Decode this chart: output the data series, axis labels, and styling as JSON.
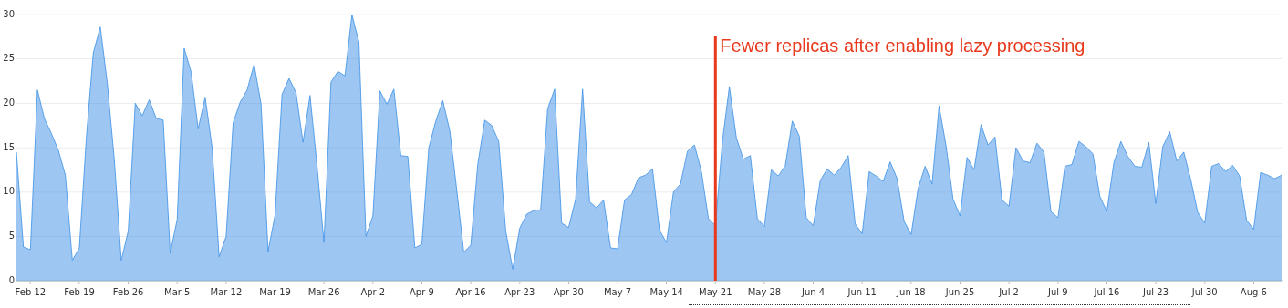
{
  "chart_data": {
    "type": "area",
    "x": [
      "--02-10",
      "--02-11",
      "--02-12",
      "--02-13",
      "--02-14",
      "--02-15",
      "--02-16",
      "--02-17",
      "--02-18",
      "--02-19",
      "--02-20",
      "--02-21",
      "--02-22",
      "--02-23",
      "--02-24",
      "--02-25",
      "--02-26",
      "--02-27",
      "--02-28",
      "--03-01",
      "--03-02",
      "--03-03",
      "--03-04",
      "--03-05",
      "--03-06",
      "--03-07",
      "--03-08",
      "--03-09",
      "--03-10",
      "--03-11",
      "--03-12",
      "--03-13",
      "--03-14",
      "--03-15",
      "--03-16",
      "--03-17",
      "--03-18",
      "--03-19",
      "--03-20",
      "--03-21",
      "--03-22",
      "--03-23",
      "--03-24",
      "--03-25",
      "--03-26",
      "--03-27",
      "--03-28",
      "--03-29",
      "--03-30",
      "--03-31",
      "--04-01",
      "--04-02",
      "--04-03",
      "--04-04",
      "--04-05",
      "--04-06",
      "--04-07",
      "--04-08",
      "--04-09",
      "--04-10",
      "--04-11",
      "--04-12",
      "--04-13",
      "--04-14",
      "--04-15",
      "--04-16",
      "--04-17",
      "--04-18",
      "--04-19",
      "--04-20",
      "--04-21",
      "--04-22",
      "--04-23",
      "--04-24",
      "--04-25",
      "--04-26",
      "--04-27",
      "--04-28",
      "--04-29",
      "--04-30",
      "--05-01",
      "--05-02",
      "--05-03",
      "--05-04",
      "--05-05",
      "--05-06",
      "--05-07",
      "--05-08",
      "--05-09",
      "--05-10",
      "--05-11",
      "--05-12",
      "--05-13",
      "--05-14",
      "--05-15",
      "--05-16",
      "--05-17",
      "--05-18",
      "--05-19",
      "--05-20",
      "--05-21",
      "--05-22",
      "--05-23",
      "--05-24",
      "--05-25",
      "--05-26",
      "--05-27",
      "--05-28",
      "--05-29",
      "--05-30",
      "--05-31",
      "--06-01",
      "--06-02",
      "--06-03",
      "--06-04",
      "--06-05",
      "--06-06",
      "--06-07",
      "--06-08",
      "--06-09",
      "--06-10",
      "--06-11",
      "--06-12",
      "--06-13",
      "--06-14",
      "--06-15",
      "--06-16",
      "--06-17",
      "--06-18",
      "--06-19",
      "--06-20",
      "--06-21",
      "--06-22",
      "--06-23",
      "--06-24",
      "--06-25",
      "--06-26",
      "--06-27",
      "--06-28",
      "--06-29",
      "--06-30",
      "--07-01",
      "--07-02",
      "--07-03",
      "--07-04",
      "--07-05",
      "--07-06",
      "--07-07",
      "--07-08",
      "--07-09",
      "--07-10",
      "--07-11",
      "--07-12",
      "--07-13",
      "--07-14",
      "--07-15",
      "--07-16",
      "--07-17",
      "--07-18",
      "--07-19",
      "--07-20",
      "--07-21",
      "--07-22",
      "--07-23",
      "--07-24",
      "--07-25",
      "--07-26",
      "--07-27",
      "--07-28",
      "--07-29",
      "--07-30",
      "--07-31",
      "--08-01",
      "--08-02",
      "--08-03",
      "--08-04",
      "--08-05",
      "--08-06",
      "--08-07",
      "--08-08",
      "--08-09",
      "--08-10"
    ],
    "series": [
      {
        "color": "#3b8fe5",
        "values": [
          14.5,
          3.8,
          3.5,
          21.5,
          18.3,
          16.6,
          14.7,
          11.9,
          2.3,
          3.7,
          16.1,
          25.7,
          28.6,
          22.3,
          13.7,
          2.3,
          5.6,
          20.0,
          18.6,
          20.4,
          18.3,
          18.1,
          3.1,
          6.9,
          26.2,
          23.5,
          17.1,
          20.7,
          15.0,
          2.7,
          5.0,
          17.8,
          20.1,
          21.5,
          24.4,
          19.9,
          3.3,
          7.4,
          21.0,
          22.8,
          21.2,
          15.6,
          20.9,
          13.0,
          4.3,
          22.4,
          23.6,
          23.1,
          30.0,
          26.9,
          5.0,
          7.3,
          21.4,
          19.9,
          21.6,
          14.1,
          14.0,
          3.7,
          4.1,
          15.0,
          18.0,
          20.3,
          16.9,
          10.2,
          3.2,
          4.0,
          13.1,
          18.1,
          17.5,
          15.7,
          5.6,
          1.3,
          5.9,
          7.5,
          7.9,
          8.0,
          19.4,
          21.6,
          6.5,
          6.0,
          9.2,
          21.6,
          8.9,
          8.2,
          9.1,
          3.7,
          3.6,
          9.1,
          9.7,
          11.6,
          11.9,
          12.6,
          5.7,
          4.3,
          10.0,
          10.9,
          14.6,
          15.3,
          12.3,
          7.0,
          6.2,
          15.7,
          21.9,
          16.1,
          13.7,
          14.1,
          7.0,
          6.1,
          12.5,
          11.8,
          13.0,
          18.0,
          16.3,
          7.1,
          6.2,
          11.3,
          12.6,
          11.9,
          12.8,
          14.1,
          6.4,
          5.3,
          12.3,
          11.8,
          11.2,
          13.4,
          11.5,
          6.7,
          5.2,
          10.4,
          12.9,
          10.9,
          19.7,
          15.2,
          9.2,
          7.3,
          13.9,
          12.5,
          17.6,
          15.3,
          16.2,
          9.1,
          8.4,
          15.0,
          13.5,
          13.3,
          15.5,
          14.5,
          7.8,
          7.1,
          12.9,
          13.1,
          15.7,
          15.1,
          14.3,
          9.5,
          7.8,
          13.3,
          15.7,
          14.0,
          12.9,
          12.8,
          15.6,
          8.7,
          15.1,
          16.8,
          13.5,
          14.5,
          11.4,
          7.7,
          6.5,
          12.9,
          13.2,
          12.3,
          13.0,
          11.8,
          6.8,
          5.8,
          12.2,
          11.9,
          11.5,
          11.9
        ]
      }
    ],
    "xlim": [
      "--02-10",
      "--08-10"
    ],
    "xticks": [
      {
        "value": "--02-12",
        "label": "Feb 12"
      },
      {
        "value": "--02-19",
        "label": "Feb 19"
      },
      {
        "value": "--02-26",
        "label": "Feb 26"
      },
      {
        "value": "--03-05",
        "label": "Mar 5"
      },
      {
        "value": "--03-12",
        "label": "Mar 12"
      },
      {
        "value": "--03-19",
        "label": "Mar 19"
      },
      {
        "value": "--03-26",
        "label": "Mar 26"
      },
      {
        "value": "--04-02",
        "label": "Apr 2"
      },
      {
        "value": "--04-09",
        "label": "Apr 9"
      },
      {
        "value": "--04-16",
        "label": "Apr 16"
      },
      {
        "value": "--04-23",
        "label": "Apr 23"
      },
      {
        "value": "--04-30",
        "label": "Apr 30"
      },
      {
        "value": "--05-07",
        "label": "May 7"
      },
      {
        "value": "--05-14",
        "label": "May 14"
      },
      {
        "value": "--05-21",
        "label": "May 21"
      },
      {
        "value": "--05-28",
        "label": "May 28"
      },
      {
        "value": "--06-04",
        "label": "Jun 4"
      },
      {
        "value": "--06-11",
        "label": "Jun 11"
      },
      {
        "value": "--06-18",
        "label": "Jun 18"
      },
      {
        "value": "--06-25",
        "label": "Jun 25"
      },
      {
        "value": "--07-02",
        "label": "Jul 2"
      },
      {
        "value": "--07-09",
        "label": "Jul 9"
      },
      {
        "value": "--07-16",
        "label": "Jul 16"
      },
      {
        "value": "--07-23",
        "label": "Jul 23"
      },
      {
        "value": "--07-30",
        "label": "Jul 30"
      },
      {
        "value": "--08-06",
        "label": "Aug 6"
      }
    ],
    "ylim": [
      0,
      30
    ],
    "yticks": [
      0,
      5,
      10,
      15,
      20,
      25,
      30
    ],
    "grid": "y",
    "marker": "none",
    "ref_lines": [
      {
        "axis": "x",
        "value": "--05-21",
        "label": "Fewer replicas after enabling lazy processing",
        "color": "#e8391d"
      }
    ]
  }
}
